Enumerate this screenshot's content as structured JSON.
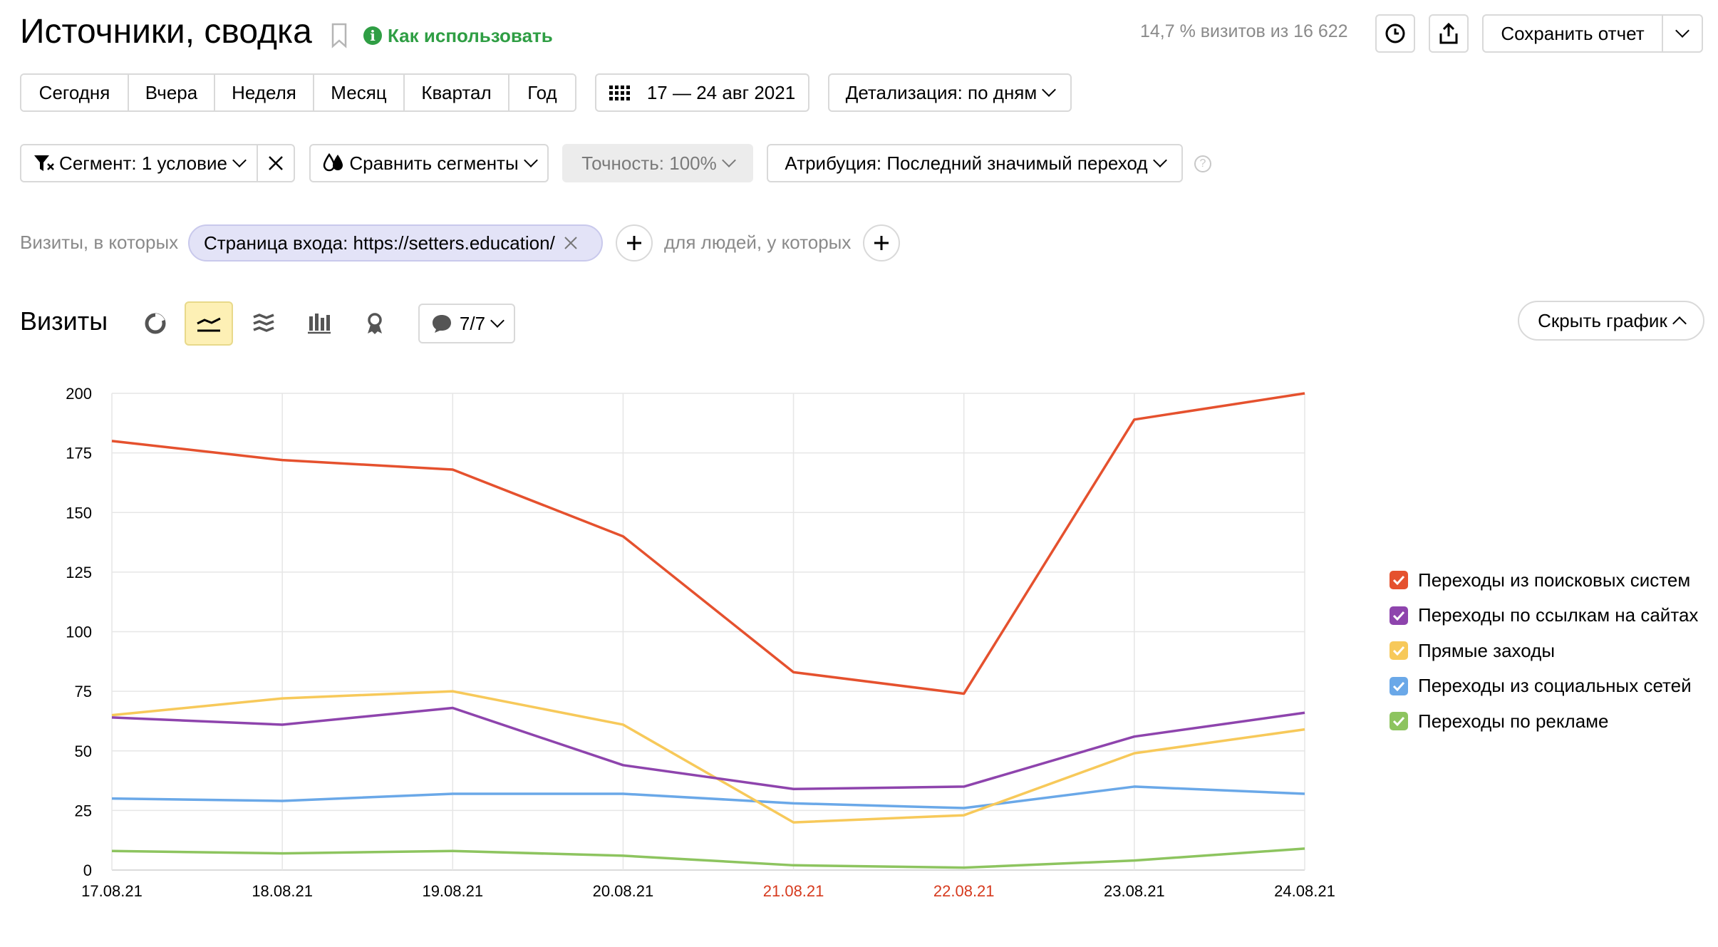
{
  "header": {
    "title": "Источники, сводка",
    "help_link": "Как использовать",
    "sample_info": "14,7 % визитов из 16 622",
    "save_report": "Сохранить отчет"
  },
  "periods": [
    "Сегодня",
    "Вчера",
    "Неделя",
    "Месяц",
    "Квартал",
    "Год"
  ],
  "date_range": "17 — 24 авг 2021",
  "detail": "Детализация: по дням",
  "filters": {
    "segment": "Сегмент: 1 условие",
    "compare": "Сравнить сегменты",
    "accuracy": "Точность: 100%",
    "attribution": "Атрибуция: Последний значимый переход"
  },
  "condition": {
    "prefix": "Визиты, в которых",
    "chip": "Страница входа: https://setters.education/",
    "people": "для людей, у которых"
  },
  "chart_section": {
    "title": "Визиты",
    "annotations": "7/7",
    "hide_chart": "Скрыть график"
  },
  "colors": {
    "accent_green": "#2f9e44",
    "active_chart_type_bg": "#fdf0b5",
    "weekend_red": "#d63a1e"
  },
  "chart_data": {
    "type": "line",
    "x": [
      "17.08.21",
      "18.08.21",
      "19.08.21",
      "20.08.21",
      "21.08.21",
      "22.08.21",
      "23.08.21",
      "24.08.21"
    ],
    "weekend": [
      false,
      false,
      false,
      false,
      true,
      true,
      false,
      false
    ],
    "ylim": [
      0,
      200
    ],
    "yticks": [
      0,
      25,
      50,
      75,
      100,
      125,
      150,
      175,
      200
    ],
    "grid": true,
    "legend_position": "right",
    "series": [
      {
        "name": "Переходы из поисковых систем",
        "color": "#e5512e",
        "values": [
          180,
          172,
          168,
          140,
          83,
          74,
          189,
          200
        ]
      },
      {
        "name": "Переходы по ссылкам на сайтах",
        "color": "#8e44ad",
        "values": [
          64,
          61,
          68,
          44,
          34,
          35,
          56,
          66
        ]
      },
      {
        "name": "Прямые заходы",
        "color": "#f7c95a",
        "values": [
          65,
          72,
          75,
          61,
          20,
          23,
          49,
          59
        ]
      },
      {
        "name": "Переходы из социальных сетей",
        "color": "#6aa8e8",
        "values": [
          30,
          29,
          32,
          32,
          28,
          26,
          35,
          32
        ]
      },
      {
        "name": "Переходы по рекламе",
        "color": "#8dc45f",
        "values": [
          8,
          7,
          8,
          6,
          2,
          1,
          4,
          9
        ]
      }
    ]
  }
}
